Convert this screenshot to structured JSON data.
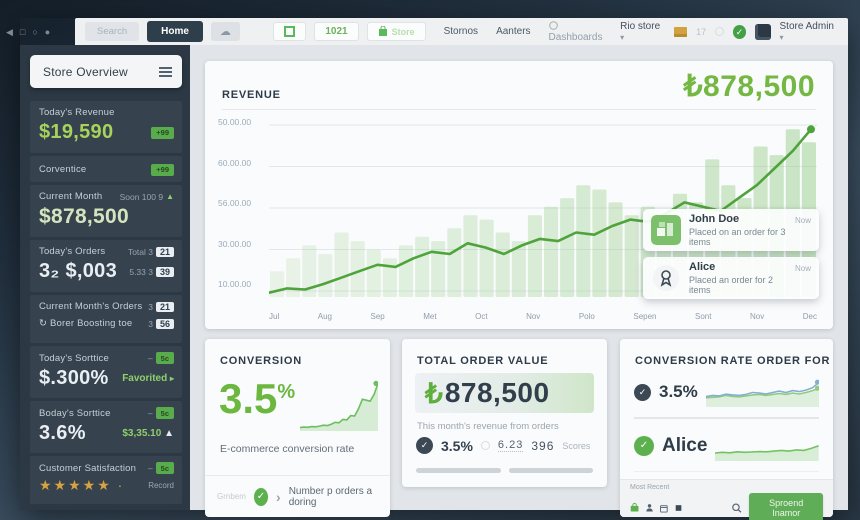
{
  "icons": {
    "back": "◀",
    "ctrl1": "□",
    "ctrl2": "○",
    "ctrl3": "●",
    "cloud": "☁",
    "check": "✓",
    "caret": "▾",
    "chevron": "›",
    "play": "▸",
    "up": "▲",
    "refresh": "↻",
    "star": "★"
  },
  "topbar": {
    "search_placeholder": "Search",
    "home_label": "Home",
    "count_button": "1021",
    "store_button": "Store",
    "links": [
      "Stornos",
      "Aanters",
      "Dashboards"
    ],
    "right": {
      "store_selector": "Rio store",
      "count": "17",
      "admin": "Store Admin"
    }
  },
  "sidebar": {
    "header": "Store Overview",
    "rows": [
      {
        "label": "Today's Revenue",
        "value": "$19,590",
        "badge": "+99"
      },
      {
        "label": "Corventice",
        "badge": "+99"
      },
      {
        "label": "Current Month",
        "meta": "Soon 100 9",
        "trend": "▲",
        "value": "$878,500"
      },
      {
        "label": "Today's Orders",
        "meta": "Total 3",
        "chip": "21",
        "value": "3₂ $,003",
        "meta2": "5.33 3",
        "chip2": "39"
      },
      {
        "label": "Current Month's Orders",
        "meta": "3",
        "chip": "21",
        "icon": "↻",
        "line2": "Borer Boosting toe",
        "meta2": "3",
        "chip2": "56"
      },
      {
        "label": "Today's Sorttice",
        "badge": "5c",
        "value": "$.300%",
        "extra": "Favorited",
        "trend": "▸"
      },
      {
        "label": "Boday's Sorttice",
        "badge": "5c",
        "value": "3.6%",
        "extra": "$3,35.10",
        "trend": "▲"
      },
      {
        "label": "Customer Satisfaction",
        "badge": "5c",
        "stars": 5,
        "extra": "Record"
      }
    ]
  },
  "revenue": {
    "title": "REVENUE",
    "total": "₺878,500"
  },
  "notifications": [
    {
      "name": "John Doe",
      "text": "Placed on an order for 3 items",
      "time": "Now",
      "icon": "store-icon"
    },
    {
      "name": "Alice",
      "text": "Placed an order for 2 items",
      "time": "Now",
      "icon": "award-icon"
    }
  ],
  "cards": {
    "conversion": {
      "title": "CONVERSION",
      "value": "3.5",
      "unit": "%",
      "subtitle": "E-commerce conversion rate",
      "footer_note": "Grnbem",
      "footer_text": "Number p orders a doring"
    },
    "total_order": {
      "title": "TOTAL ORDER VALUE",
      "currency": "₺",
      "value": "878,500",
      "subtitle": "This month's revenue from orders",
      "stat1": "3.5%",
      "stat2": "6.23",
      "stat3": "396",
      "stat4": "Scores"
    },
    "rate": {
      "title": "CONVERSION RATE ORDER FOR",
      "row1_value": "3.5%",
      "row2_value": "Alice",
      "footer_label": "Most Recent",
      "button_label": "Sproend Inamor"
    }
  },
  "chart_data": [
    {
      "type": "line",
      "title": "REVENUE",
      "total_label": "₺878,500",
      "ylim": [
        0,
        80000
      ],
      "grid": true,
      "legend": "none",
      "y_tick_labels": [
        "50.00.00",
        "60.00.00",
        "56.00.00",
        "30.00.00",
        "10.00.00"
      ],
      "x_labels": [
        "Jul",
        "Aug",
        "Sep",
        "Met",
        "Oct",
        "Nov",
        "Polo",
        "Sepen",
        "Sont",
        "Nov",
        "Dec"
      ],
      "series": [
        {
          "name": "monthly-revenue-line",
          "type": "line",
          "color": "#4fa33b",
          "values": [
            2000,
            4000,
            3500,
            6000,
            9000,
            12000,
            15000,
            14000,
            18000,
            21000,
            20000,
            25000,
            23000,
            20000,
            24000,
            27000,
            26000,
            30000,
            29000,
            33000,
            36000,
            35000,
            39000,
            44000,
            42000,
            40000,
            46000,
            52000,
            60000,
            68000,
            78000
          ]
        },
        {
          "name": "revenue-volume-bars",
          "type": "bar",
          "color": "#8cc97f",
          "values": [
            12000,
            18000,
            24000,
            20000,
            30000,
            26000,
            22000,
            18000,
            24000,
            28000,
            26000,
            32000,
            38000,
            36000,
            30000,
            26000,
            38000,
            42000,
            46000,
            52000,
            50000,
            44000,
            38000,
            42000,
            36000,
            48000,
            44000,
            64000,
            52000,
            46000,
            70000,
            66000,
            78000,
            72000
          ]
        }
      ]
    },
    {
      "type": "area",
      "name": "ecommerce-conversion-rate-sparkline",
      "ylim": [
        0,
        100
      ],
      "series": [
        {
          "name": "conversion-trend",
          "type": "area",
          "color": "#6cbe60",
          "values": [
            3,
            4,
            3.5,
            5,
            4.5,
            6,
            8,
            7,
            10,
            14,
            13,
            20,
            19,
            28,
            27,
            42,
            62,
            60,
            58,
            72,
            95
          ]
        }
      ]
    },
    {
      "type": "line",
      "name": "rate-3.5-sparkline",
      "ylim": [
        0,
        100
      ],
      "series": [
        {
          "name": "trend-green-area",
          "type": "area",
          "color": "#8fcb83",
          "values": [
            30,
            32,
            34,
            40,
            36,
            34,
            38,
            42,
            44,
            40,
            44,
            48,
            44,
            50,
            46,
            52,
            60,
            70
          ]
        },
        {
          "name": "trend-blue-line",
          "type": "line",
          "color": "#85aed0",
          "values": [
            35,
            40,
            38,
            45,
            42,
            40,
            44,
            52,
            50,
            46,
            52,
            58,
            52,
            60,
            56,
            62,
            72,
            95
          ]
        }
      ]
    },
    {
      "type": "line",
      "name": "alice-orders-sparkline",
      "ylim": [
        0,
        100
      ],
      "series": [
        {
          "name": "orders-trend",
          "type": "area",
          "color": "#74c263",
          "values": [
            25,
            28,
            26,
            30,
            28,
            29,
            31,
            30,
            33,
            36,
            33,
            38,
            36,
            44,
            55
          ]
        }
      ]
    }
  ]
}
